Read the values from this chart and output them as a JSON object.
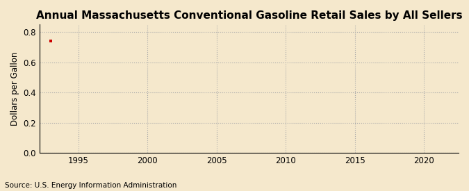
{
  "title": "Annual Massachusetts Conventional Gasoline Retail Sales by All Sellers",
  "ylabel": "Dollars per Gallon",
  "source_text": "Source: U.S. Energy Information Administration",
  "data_x": [
    1993
  ],
  "data_y": [
    0.742
  ],
  "marker_color": "#cc0000",
  "marker_style": "s",
  "marker_size": 3,
  "xlim": [
    1992.2,
    2022.5
  ],
  "ylim": [
    0.0,
    0.85
  ],
  "yticks": [
    0.0,
    0.2,
    0.4,
    0.6,
    0.8
  ],
  "xticks": [
    1995,
    2000,
    2005,
    2010,
    2015,
    2020
  ],
  "background_color": "#f5e8cc",
  "plot_bg_color": "#f5e8cc",
  "grid_color": "#aaaaaa",
  "title_fontsize": 11,
  "label_fontsize": 8.5,
  "tick_fontsize": 8.5,
  "source_fontsize": 7.5
}
